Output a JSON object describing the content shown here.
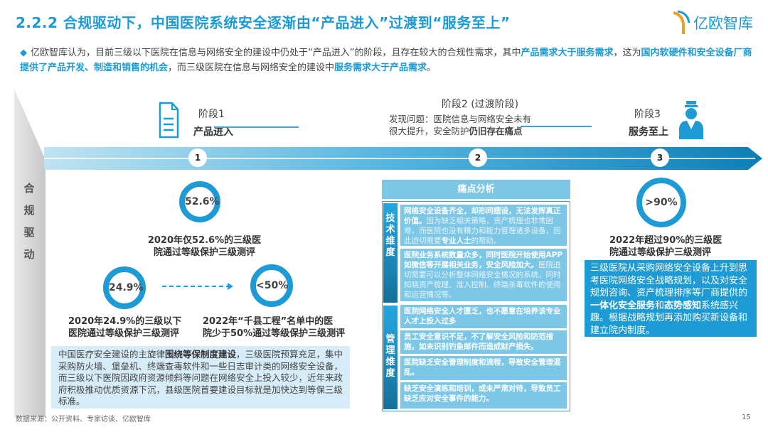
{
  "title": "2.2.2 合规驱动下，中国医院系统安全逐渐由“产品进入”过渡到“服务至上”",
  "logo": "亿欧智库",
  "intro": {
    "t1": "亿欧智库认为，目前三级以下医院在信息与网络安全的建设中仍处于“产品进入”的阶段，且存在较大的合规性需求，其中",
    "b1": "产品需求大于服务需求",
    "t2": "，这为",
    "b2": "国内软硬件和安全设备厂商提供了产品开发、制造和销售的机会",
    "t3": "，而三级医院在信息与网络安全的建设中",
    "b3": "服务需求大于产品需求",
    "t4": "。"
  },
  "driver_label": "合规驱动",
  "stages": [
    {
      "num": "1",
      "label": "阶段1",
      "name": "产品进入"
    },
    {
      "num": "2",
      "label": "阶段2 (过渡阶段)",
      "desc1": "发现问题：医院信息与网络安全未有",
      "desc2": "很大提升，安全防护",
      "desc_bold": "仍旧存在痛点"
    },
    {
      "num": "3",
      "label": "阶段3",
      "name": "服务至上"
    }
  ],
  "stats": {
    "s1": {
      "value": "52.6%",
      "caption1": "2020年仅52.6%的三级医",
      "caption2": "院通过等级保护三级测评"
    },
    "s2": {
      "value": "24.9%",
      "caption1": "2020年24.9%的三级以下",
      "caption2": "医院通过等级保护三级测评"
    },
    "s3": {
      "value": "<50%",
      "caption1": "2022年“千县工程”名单中的医",
      "caption2": "院少于50%通过等级保护三级测评"
    },
    "s4": {
      "value": ">90%",
      "caption1": "2022年超过90%的三级医",
      "caption2": "院通过等级保护三级测评"
    }
  },
  "bottom_left": {
    "t1": "中国医疗安全建设的主旋律",
    "b1": "围绕等保制度建设",
    "t2": "，三级医院预算充足，集中采购防火墙、堡垒机、终端查毒软件和一些日志审计类的网络安全设备，而三级以下医院因政府资源倾斜等问题在网络安全上投入较少，近年来政府积极推动优质资源下沉，县级医院首要建设目标就是加快达到等保三级标准。"
  },
  "pain": {
    "header": "痛点分析",
    "tech_label": "技术维度",
    "mgmt_label": "管理维度",
    "tech": [
      {
        "b": "网络安全设备齐全，却形同摆设，无法发挥真正价值。",
        "t": "因为缺乏相关策略，资产梳理也非常困难，而医院也没有精力和能力管理诸多设备，因此迫切需要",
        "b2": "专业人士",
        "t2": "的帮助。"
      },
      {
        "b": "医院业务系统数量众多，同时医院开始使用APP如微信等开展相关业务，安全风险加大。",
        "t": "医院迫切需要可以分析整体网络安全情况的系统，同时知晓资产梳理、准入控制、终端杀毒软件的使用和运营情况等。"
      }
    ],
    "mgmt": [
      "医院网络安全人才匮乏，也不愿意在培养该专业人才上投入过多",
      "员工安全意识不足，不了解安全风险和防范措施。如未识别钓鱼邮件而造成财产损失。",
      "医院缺乏安全管理制度和流程，导致安全管理混乱。",
      "缺乏安全演练和培训，或未严肃对待，导致员工缺乏应对安全事件的能力。"
    ]
  },
  "right_box": {
    "t1": "三级医院从采购网络安全设备上升到思考医院网络安全战略规划，以及对安全规划咨询、资产梳理排序等厂商提供的",
    "b1": "一体化安全服务",
    "t2": "和",
    "b2": "态势感知",
    "t3": "系统感兴趣。根据战略规划再添加购买新设备和建立院内制度。"
  },
  "source": "数据来源：公开资料、专家访谈、亿欧智库",
  "page_number": "15",
  "colors": {
    "accent": "#1a9ad6",
    "light_box": "#d6ecf8",
    "pain_box": "#7cc6e6"
  }
}
